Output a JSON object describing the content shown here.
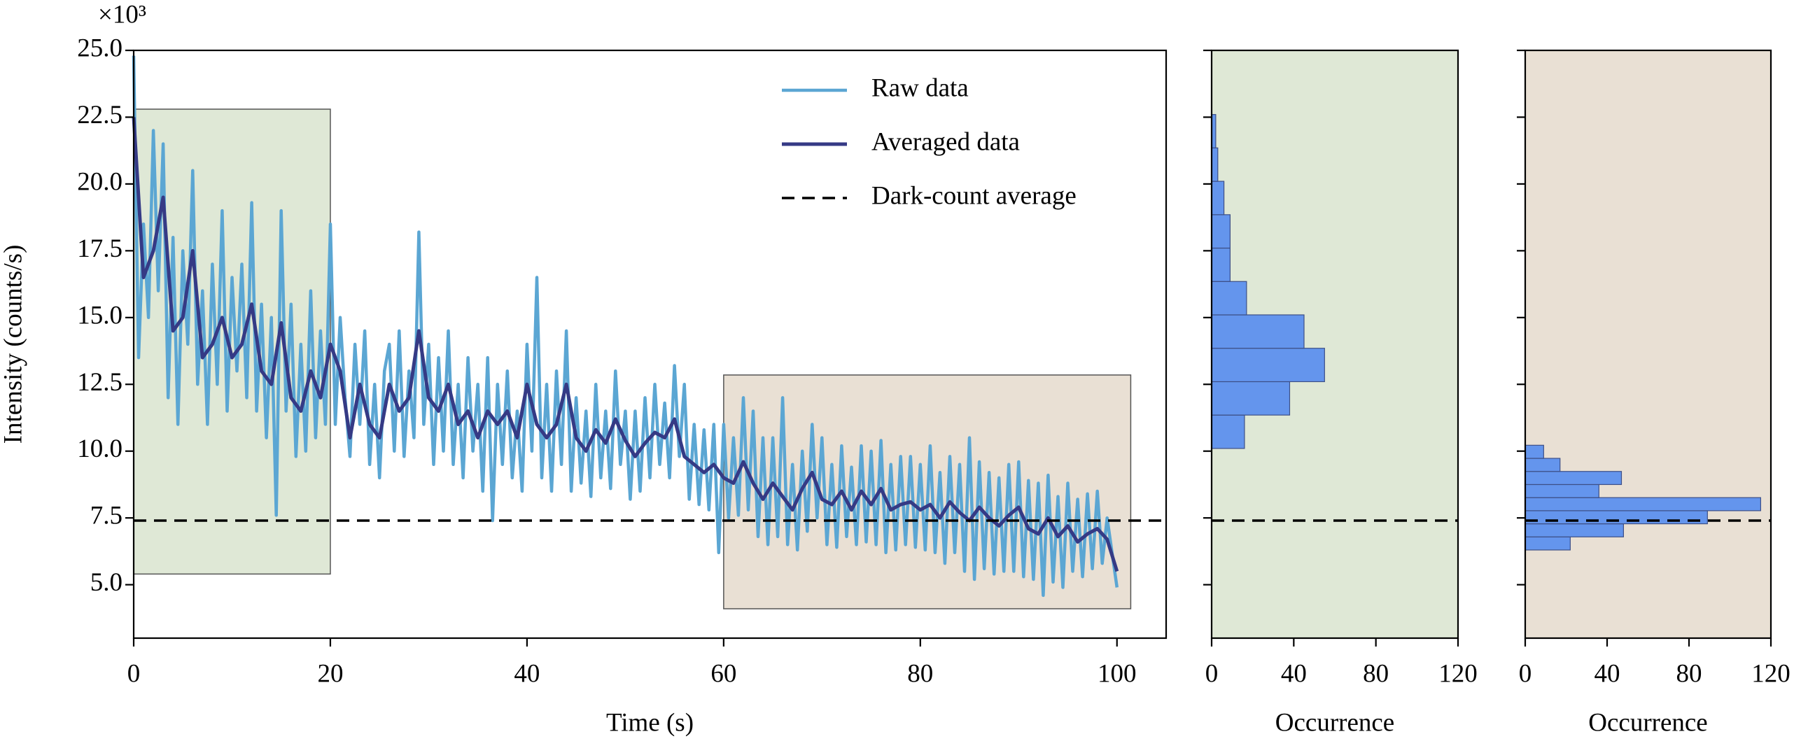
{
  "chart_data": [
    {
      "type": "line",
      "xlabel": "Time (s)",
      "ylabel": "Intensity (counts/s)",
      "y_multiplier": "×10³",
      "xlim": [
        0,
        105
      ],
      "xticks": [
        0,
        20,
        40,
        60,
        80,
        100
      ],
      "ylim": [
        3,
        25
      ],
      "yticks": [
        {
          "value": 5,
          "label": "5.0"
        },
        {
          "value": 7.5,
          "label": "7.5"
        },
        {
          "value": 10,
          "label": "10.0"
        },
        {
          "value": 12.5,
          "label": "12.5"
        },
        {
          "value": 15,
          "label": "15.0"
        },
        {
          "value": 17.5,
          "label": "17.5"
        },
        {
          "value": 20,
          "label": "20.0"
        },
        {
          "value": 22.5,
          "label": "22.5"
        },
        {
          "value": 25,
          "label": "25.0"
        }
      ],
      "regions": [
        {
          "xlim": [
            0,
            20
          ],
          "ylim": [
            5.4,
            22.8
          ],
          "color": "#dfe8d6"
        },
        {
          "xlim": [
            60,
            101.4
          ],
          "ylim": [
            4.1,
            12.85
          ],
          "color": "#e9e0d4"
        }
      ],
      "hlines": [
        {
          "name": "Dark-count average",
          "value": 7.4,
          "color": "#000000",
          "dashed": true
        }
      ],
      "series": [
        {
          "name": "Raw data",
          "color": "#5ba6d3",
          "x": [
            0,
            0.5,
            1,
            1.5,
            2,
            2.5,
            3,
            3.5,
            4,
            4.5,
            5,
            5.5,
            6,
            6.5,
            7,
            7.5,
            8,
            8.5,
            9,
            9.5,
            10,
            10.5,
            11,
            11.5,
            12,
            12.5,
            13,
            13.5,
            14,
            14.5,
            15,
            15.5,
            16,
            16.5,
            17,
            17.5,
            18,
            18.5,
            19,
            19.5,
            20,
            20.5,
            21,
            21.5,
            22,
            22.5,
            23,
            23.5,
            24,
            24.5,
            25,
            25.5,
            26,
            26.5,
            27,
            27.5,
            28,
            28.5,
            29,
            29.5,
            30,
            30.5,
            31,
            31.5,
            32,
            32.5,
            33,
            33.5,
            34,
            34.5,
            35,
            35.5,
            36,
            36.5,
            37,
            37.5,
            38,
            38.5,
            39,
            39.5,
            40,
            40.5,
            41,
            41.5,
            42,
            42.5,
            43,
            43.5,
            44,
            44.5,
            45,
            45.5,
            46,
            46.5,
            47,
            47.5,
            48,
            48.5,
            49,
            49.5,
            50,
            50.5,
            51,
            51.5,
            52,
            52.5,
            53,
            53.5,
            54,
            54.5,
            55,
            55.5,
            56,
            56.5,
            57,
            57.5,
            58,
            58.5,
            59,
            59.5,
            60,
            60.5,
            61,
            61.5,
            62,
            62.5,
            63,
            63.5,
            64,
            64.5,
            65,
            65.5,
            66,
            66.5,
            67,
            67.5,
            68,
            68.5,
            69,
            69.5,
            70,
            70.5,
            71,
            71.5,
            72,
            72.5,
            73,
            73.5,
            74,
            74.5,
            75,
            75.5,
            76,
            76.5,
            77,
            77.5,
            78,
            78.5,
            79,
            79.5,
            80,
            80.5,
            81,
            81.5,
            82,
            82.5,
            83,
            83.5,
            84,
            84.5,
            85,
            85.5,
            86,
            86.5,
            87,
            87.5,
            88,
            88.5,
            89,
            89.5,
            90,
            90.5,
            91,
            91.5,
            92,
            92.5,
            93,
            93.5,
            94,
            94.5,
            95,
            95.5,
            96,
            96.5,
            97,
            97.5,
            98,
            98.5,
            99,
            99.5,
            100
          ],
          "values": [
            24.8,
            13.5,
            18.5,
            15,
            22,
            16,
            21.5,
            12,
            18,
            11,
            17.5,
            14,
            20.5,
            12.5,
            16,
            11,
            17,
            12.5,
            19,
            11.5,
            16.5,
            13,
            17,
            12,
            19.3,
            11.5,
            15.5,
            10.5,
            15,
            7.6,
            19,
            11.5,
            15.5,
            9.8,
            14,
            10,
            16,
            10.5,
            14.5,
            11,
            18.5,
            11,
            15,
            12,
            9.8,
            14,
            11,
            14.5,
            9.5,
            12.5,
            9,
            13,
            14,
            10,
            14.5,
            9.8,
            13,
            10.5,
            18.2,
            11,
            14,
            9.5,
            13.5,
            10,
            14.5,
            9.5,
            12.5,
            9,
            13.5,
            10,
            12.5,
            8.5,
            13.5,
            7.4,
            12.5,
            9.5,
            13,
            9,
            11.5,
            8.5,
            14,
            10,
            16.5,
            9,
            12.5,
            8.5,
            13,
            9.5,
            14.5,
            8.5,
            12,
            8.8,
            11.5,
            8.3,
            12.5,
            9,
            11.5,
            8.6,
            13,
            9.5,
            11.5,
            8.2,
            11.5,
            8.5,
            12,
            9,
            12.5,
            9.5,
            11.8,
            9,
            13.2,
            9.8,
            12.5,
            8.2,
            11,
            8,
            10.8,
            7.8,
            11,
            6.2,
            11,
            7.5,
            10.5,
            7.6,
            12,
            7.8,
            11.5,
            6.8,
            10.5,
            6.5,
            10.5,
            6.8,
            12,
            6.5,
            9.5,
            6.3,
            10,
            7,
            11,
            7.5,
            10.5,
            6.5,
            9.5,
            6.4,
            10.2,
            6.8,
            9.4,
            6.5,
            10.2,
            6.6,
            10,
            6.5,
            10.4,
            6.2,
            9.5,
            6.3,
            9.8,
            6.5,
            9.8,
            6.4,
            9.5,
            6.3,
            10.2,
            6.2,
            9.2,
            5.8,
            9.8,
            6.2,
            9.5,
            5.5,
            10.5,
            5.2,
            9.6,
            5.6,
            9.2,
            5.4,
            9,
            5.5,
            9.5,
            5.5,
            9.6,
            5.3,
            8.9,
            5.2,
            8.8,
            4.6,
            9.1,
            5.1,
            8.3,
            4.9,
            8.8,
            5.5,
            8.2,
            5.3,
            8.4,
            5.6,
            8.5,
            5.8,
            7.5,
            6.2,
            4.9
          ]
        },
        {
          "name": "Averaged data",
          "color": "#353a85",
          "x": [
            0,
            1,
            2,
            3,
            4,
            5,
            6,
            7,
            8,
            9,
            10,
            11,
            12,
            13,
            14,
            15,
            16,
            17,
            18,
            19,
            20,
            21,
            22,
            23,
            24,
            25,
            26,
            27,
            28,
            29,
            30,
            31,
            32,
            33,
            34,
            35,
            36,
            37,
            38,
            39,
            40,
            41,
            42,
            43,
            44,
            45,
            46,
            47,
            48,
            49,
            50,
            51,
            52,
            53,
            54,
            55,
            56,
            57,
            58,
            59,
            60,
            61,
            62,
            63,
            64,
            65,
            66,
            67,
            68,
            69,
            70,
            71,
            72,
            73,
            74,
            75,
            76,
            77,
            78,
            79,
            80,
            81,
            82,
            83,
            84,
            85,
            86,
            87,
            88,
            89,
            90,
            91,
            92,
            93,
            94,
            95,
            96,
            97,
            98,
            99,
            100
          ],
          "values": [
            22.5,
            16.5,
            17.5,
            19.5,
            14.5,
            15,
            17.5,
            13.5,
            14,
            15,
            13.5,
            14,
            15.5,
            13,
            12.5,
            14.8,
            12,
            11.5,
            13,
            12,
            14,
            13,
            10.5,
            12.5,
            11,
            10.5,
            12.5,
            11.5,
            12,
            14.5,
            12,
            11.5,
            12.5,
            11,
            11.5,
            10.5,
            11.5,
            11,
            11.5,
            10.5,
            12.5,
            11,
            10.5,
            11,
            12.5,
            10.5,
            10,
            10.8,
            10.3,
            11.2,
            10.4,
            9.8,
            10.3,
            10.7,
            10.5,
            11.2,
            9.8,
            9.5,
            9.2,
            9.5,
            9,
            8.8,
            9.6,
            8.8,
            8.2,
            8.8,
            8.3,
            7.8,
            8.6,
            9.2,
            8.2,
            8,
            8.5,
            7.8,
            8.5,
            8,
            8.6,
            7.8,
            8,
            8.1,
            7.8,
            8,
            7.5,
            8.1,
            7.7,
            7.4,
            7.9,
            7.5,
            7.2,
            7.6,
            7.9,
            7.1,
            6.9,
            7.5,
            6.8,
            7.2,
            6.6,
            6.9,
            7.1,
            6.7,
            5.5
          ]
        }
      ]
    },
    {
      "type": "histogram",
      "orientation": "horizontal",
      "xlabel": "Occurrence",
      "xlim": [
        0,
        120
      ],
      "xticks": [
        0,
        40,
        80,
        120
      ],
      "background": "#dfe8d6",
      "color": "#6495ed",
      "bins": [
        10.1,
        11.35,
        12.6,
        13.85,
        15.1,
        16.35,
        17.6,
        18.85,
        20.1,
        21.35,
        22.6
      ],
      "values": [
        16,
        38,
        55,
        45,
        17,
        9,
        9,
        6,
        3,
        2
      ]
    },
    {
      "type": "histogram",
      "orientation": "horizontal",
      "xlabel": "Occurrence",
      "xlim": [
        0,
        120
      ],
      "xticks": [
        0,
        40,
        80,
        120
      ],
      "background": "#e9e0d4",
      "color": "#6495ed",
      "bins": [
        6.3,
        6.79,
        7.28,
        7.77,
        8.26,
        8.75,
        9.24,
        9.73,
        10.22
      ],
      "values": [
        22,
        48,
        89,
        115,
        36,
        47,
        17,
        9
      ]
    }
  ]
}
